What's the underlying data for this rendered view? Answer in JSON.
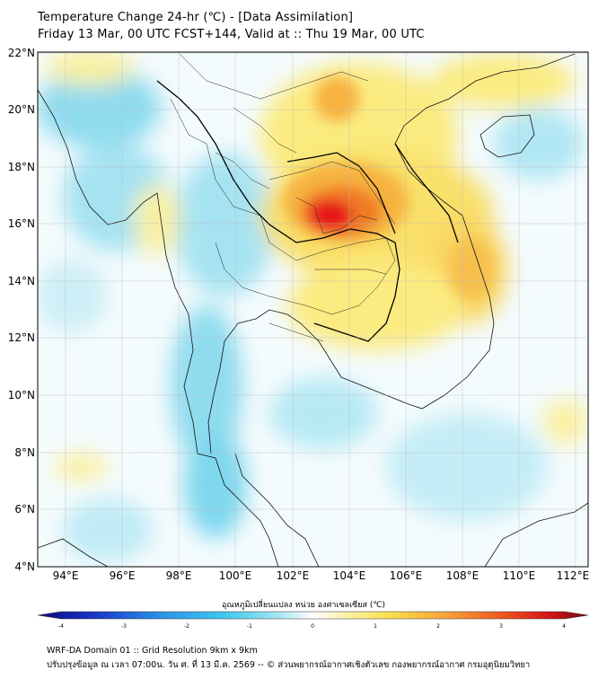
{
  "title_line1": "Temperature Change 24-hr (℃) - [Data Assimilation]",
  "title_line2": "Friday 13 Mar, 00 UTC FCST+144, Valid at :: Thu 19 Mar, 00 UTC",
  "map": {
    "lat_labels": [
      "22°N",
      "20°N",
      "18°N",
      "16°N",
      "14°N",
      "12°N",
      "10°N",
      "8°N",
      "6°N",
      "4°N"
    ],
    "lon_labels": [
      "94°E",
      "96°E",
      "98°E",
      "100°E",
      "102°E",
      "104°E",
      "106°E",
      "108°E",
      "110°E",
      "112°E"
    ],
    "lat_range": [
      4,
      22.2
    ],
    "lon_range": [
      93,
      112.4
    ]
  },
  "colorbar": {
    "label": "อุณหภูมิเปลี่ยนแปลง หน่วย องศาเซลเซียส (℃)",
    "ticks": [
      "-4",
      "-3",
      "-2",
      "-1",
      "0",
      "1",
      "2",
      "3",
      "4"
    ],
    "range": [
      -4,
      4
    ]
  },
  "footer_line1": "WRF-DA Domain 01 :: Grid Resolution 9km x 9km",
  "footer_line2": "ปรับปรุงข้อมูล ณ เวลา 07:00น. วัน ศ. ที่ 13 มี.ค. 2569 -- © ส่วนพยากรณ์อากาศเชิงตัวเลข กองพยากรณ์อากาศ กรมอุตุนิยมวิทยา",
  "colors": {
    "hot_core": "#e8141a",
    "warm": "#f7a43a",
    "light_warm": "#fbeb80",
    "cool": "#7fd7ee",
    "light_cool": "#cdeff7",
    "neutral": "#ffffff"
  }
}
